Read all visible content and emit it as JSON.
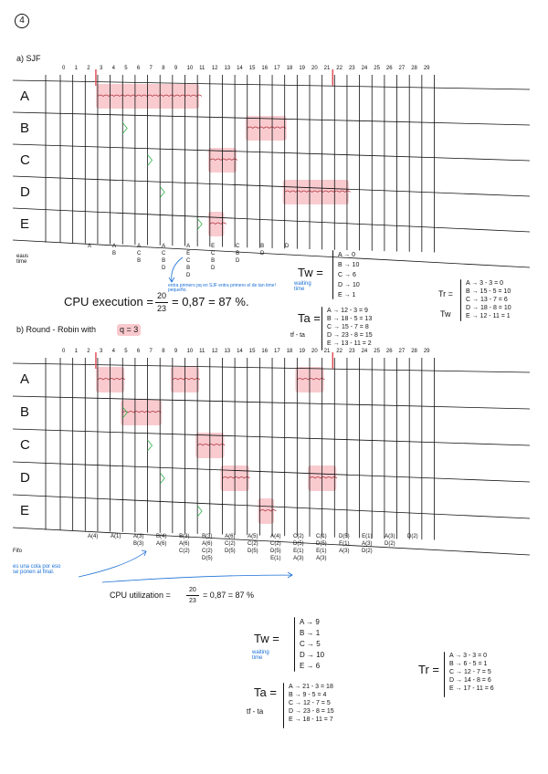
{
  "page_number": "4",
  "colors": {
    "highlight": "#f28b94",
    "arrival": "#2fb24a",
    "note": "#1a6fd6",
    "ink": "#111111"
  },
  "part_a": {
    "title": "a) SJF",
    "ticks": [
      "0",
      "1",
      "2",
      "3",
      "4",
      "5",
      "6",
      "7",
      "8",
      "9",
      "10",
      "11",
      "12",
      "13",
      "14",
      "15",
      "16",
      "17",
      "18",
      "19",
      "20",
      "21",
      "22",
      "23",
      "24",
      "25",
      "26",
      "27",
      "28",
      "29"
    ],
    "rows": [
      "A",
      "B",
      "C",
      "D",
      "E"
    ],
    "axis_label": "eaus time",
    "queue": [
      "A",
      "A\nB",
      "A\nC\nB",
      "A\nC\nB\nD",
      "A\nE\nC\nB\nD",
      "E\nC\nB\nD",
      "C\nB\nD",
      "B\nD",
      "D"
    ],
    "note": "entra primero pq en SJF entra primero el de tan time! pequeño.",
    "tw_label": "Tw =",
    "tw_note": "waiting time",
    "tw": [
      "A → 0",
      "B → 10",
      "C → 6",
      "D → 10",
      "E → 1"
    ],
    "cpu": {
      "label": "CPU execution =",
      "num": "20",
      "den": "23",
      "result": "= 0,87 = 87 %."
    },
    "ta_label": "Ta =",
    "ta_sub": "tf - ta",
    "ta": [
      "A → 12 - 3 = 9",
      "B → 18 - 5 = 13",
      "C → 15 - 7 = 8",
      "D → 23 - 8 = 15",
      "E → 13 - 11 = 2"
    ],
    "tr_label": "Tr =",
    "tr_sub": "Tw",
    "tr": [
      "A → 3 - 3 = 0",
      "B → 15 - 5 = 10",
      "C → 13 - 7 = 6",
      "D → 18 - 8 = 10",
      "E → 12 - 11 = 1"
    ]
  },
  "part_b": {
    "title": "b) Round - Robin with",
    "quantum": "q = 3",
    "ticks": [
      "0",
      "1",
      "2",
      "3",
      "4",
      "5",
      "6",
      "7",
      "8",
      "9",
      "10",
      "11",
      "12",
      "13",
      "14",
      "15",
      "16",
      "17",
      "18",
      "19",
      "20",
      "21",
      "22",
      "23",
      "24",
      "25",
      "26",
      "27",
      "28",
      "29"
    ],
    "rows": [
      "A",
      "B",
      "C",
      "D",
      "E"
    ],
    "axis_label": "Fifo",
    "queue": [
      "A(4)",
      "A(1)",
      "A(3)\nB(3)",
      "B(4)\nA(6)",
      "B(3)\nA(6)\nC(2)",
      "B(3)\nA(6)\nC(2)\nD(5)",
      "A(6)\nC(2)\nD(5)",
      "A(5)\nC(2)\nD(5)",
      "A(4)\nC(2)\nD(5)\nE(1)",
      "C(2)\nD(5)\nE(1)\nA(3)",
      "C(1)\nD(5)\nE(1)\nA(3)",
      "D(5)\nE(1)\nA(3)",
      "E(1)\nA(3)\nD(2)",
      "A(3)\nD(2)",
      "D(2)"
    ],
    "note": "es una cola por eso se ponen al final.",
    "cpu": {
      "label": "CPU utilization =",
      "num": "20",
      "den": "23",
      "result": "= 0,87 = 87 %"
    },
    "tw_label": "Tw =",
    "tw_note": "waiting time",
    "tw": [
      "A → 9",
      "B → 1",
      "C → 5",
      "D → 10",
      "E → 6"
    ],
    "ta_label": "Ta =",
    "ta_sub": "tf - ta",
    "ta": [
      "A → 21 - 3 = 18",
      "B → 9 - 5 = 4",
      "C → 12 - 7 = 5",
      "D → 23 - 8 = 15",
      "E → 18 - 11 = 7"
    ],
    "tr_label": "Tr =",
    "tr": [
      "A → 3 - 3 = 0",
      "B → 6 - 5 = 1",
      "C → 12 - 7 = 5",
      "D → 14 - 8 = 6",
      "E → 17 - 11 = 6"
    ]
  }
}
